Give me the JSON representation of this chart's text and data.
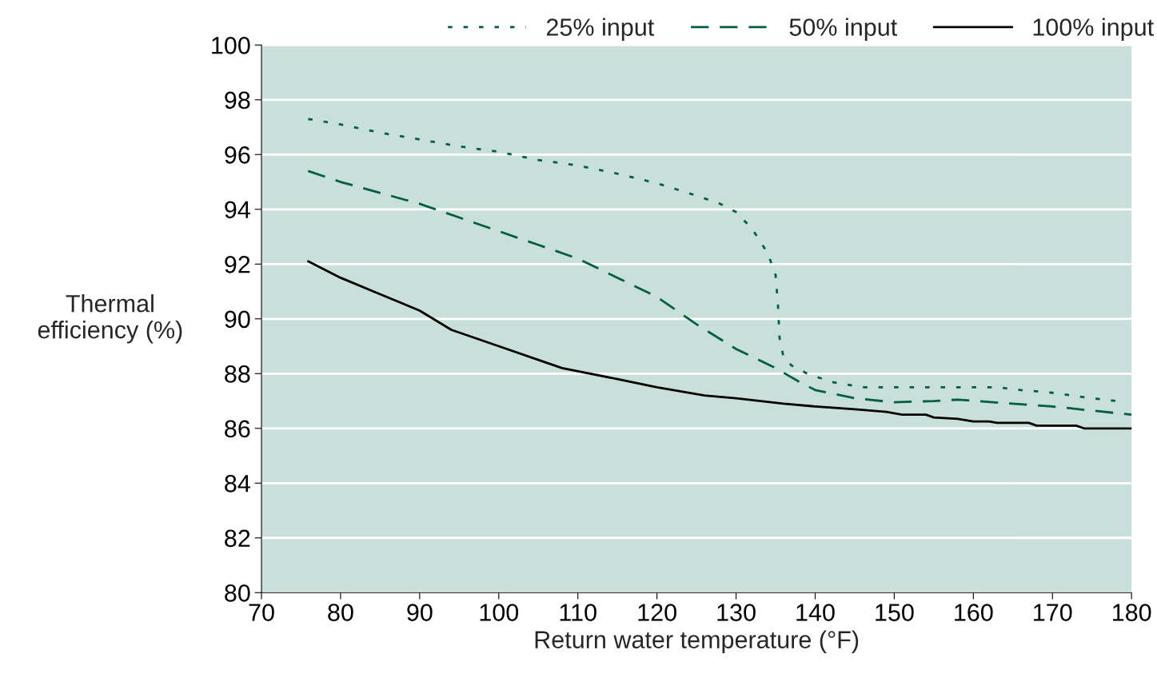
{
  "chart_data": {
    "type": "line",
    "xlabel": "Return water temperature (°F)",
    "ylabel": "Thermal\nefficiency (%)",
    "xlim": [
      70,
      180
    ],
    "xticks": [
      70,
      80,
      90,
      100,
      110,
      120,
      130,
      140,
      150,
      160,
      170,
      180
    ],
    "ylim": [
      80,
      100
    ],
    "yticks": [
      80,
      82,
      84,
      86,
      88,
      90,
      92,
      94,
      96,
      98,
      100
    ],
    "grid": "y",
    "legend": "top",
    "marker": "none",
    "series": [
      {
        "name": "25% input",
        "color": "#005e3f",
        "line_style": "dotted",
        "x": [
          75.9,
          80,
          85,
          90,
          95,
          100,
          105,
          110,
          115,
          120,
          125,
          128,
          130,
          132,
          134,
          135,
          135.3,
          135.5,
          136,
          137,
          139,
          142,
          146,
          150,
          155,
          160,
          163,
          166,
          170,
          175,
          178
        ],
        "values": [
          97.3,
          97.1,
          96.8,
          96.55,
          96.3,
          96.1,
          95.8,
          95.6,
          95.3,
          94.95,
          94.5,
          94.2,
          93.9,
          93.3,
          92.4,
          91.6,
          90.5,
          89.3,
          88.6,
          88.3,
          88.0,
          87.7,
          87.5,
          87.5,
          87.5,
          87.5,
          87.5,
          87.4,
          87.3,
          87.1,
          87.0
        ]
      },
      {
        "name": "50% input",
        "color": "#005e3f",
        "line_style": "dashed",
        "x": [
          75.9,
          80,
          90,
          95,
          100,
          105,
          110,
          115,
          120,
          125,
          130,
          135,
          138,
          140,
          145,
          150,
          155,
          158,
          165,
          170,
          175,
          180
        ],
        "values": [
          95.4,
          95.0,
          94.2,
          93.7,
          93.2,
          92.7,
          92.2,
          91.5,
          90.8,
          89.8,
          88.9,
          88.2,
          87.7,
          87.4,
          87.1,
          86.95,
          87.0,
          87.05,
          86.9,
          86.8,
          86.65,
          86.5
        ]
      },
      {
        "name": "100% input",
        "color": "#000000",
        "line_style": "solid",
        "x": [
          75.9,
          80,
          85,
          90,
          94,
          100,
          105,
          108,
          115,
          120,
          126,
          130,
          136,
          140,
          145,
          149,
          151,
          154,
          155,
          158,
          160,
          162,
          163,
          167,
          168,
          173,
          174,
          180
        ],
        "values": [
          92.1,
          91.5,
          90.9,
          90.3,
          89.6,
          89.0,
          88.5,
          88.2,
          87.8,
          87.5,
          87.2,
          87.1,
          86.9,
          86.8,
          86.7,
          86.6,
          86.5,
          86.5,
          86.4,
          86.35,
          86.25,
          86.25,
          86.2,
          86.2,
          86.1,
          86.1,
          86.0,
          86.0
        ]
      }
    ]
  }
}
